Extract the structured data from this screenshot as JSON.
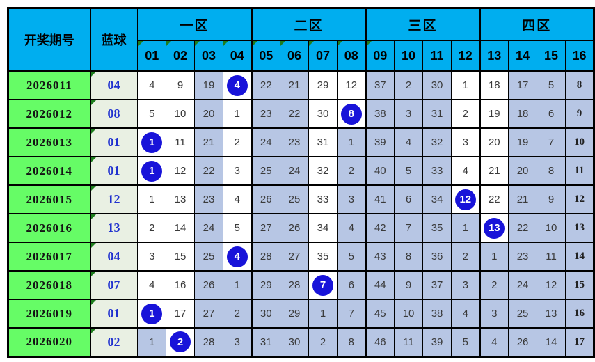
{
  "header": {
    "period_label": "开奖期号",
    "blue_label": "蓝球",
    "zones": [
      "一区",
      "二区",
      "三区",
      "四区"
    ],
    "columns": [
      "01",
      "02",
      "03",
      "04",
      "05",
      "06",
      "07",
      "08",
      "09",
      "10",
      "11",
      "12",
      "13",
      "14",
      "15",
      "16"
    ],
    "marked_columns": [
      "01",
      "02",
      "03",
      "04",
      "05",
      "06",
      "07",
      "08",
      "09"
    ]
  },
  "colors": {
    "header_bg": "#00AEEF",
    "period_bg": "#66FC66",
    "blue_ball_bg": "#E9F0E3",
    "highlight_bg": "#B7C6E4",
    "plain_bg": "#FFFFFF",
    "drawn_circle": "#1813D9",
    "blue_text": "#2031CF",
    "marker_green": "#1E7E1E",
    "border": "#000000"
  },
  "table": {
    "rows": [
      {
        "period": "2026011",
        "blue": "04",
        "cells": [
          {
            "v": "4",
            "hl": false,
            "drawn": false
          },
          {
            "v": "9",
            "hl": false,
            "drawn": false
          },
          {
            "v": "19",
            "hl": true,
            "drawn": false
          },
          {
            "v": "4",
            "hl": false,
            "drawn": true
          },
          {
            "v": "22",
            "hl": true,
            "drawn": false
          },
          {
            "v": "21",
            "hl": true,
            "drawn": false
          },
          {
            "v": "29",
            "hl": false,
            "drawn": false
          },
          {
            "v": "12",
            "hl": false,
            "drawn": false
          },
          {
            "v": "37",
            "hl": true,
            "drawn": false
          },
          {
            "v": "2",
            "hl": true,
            "drawn": false
          },
          {
            "v": "30",
            "hl": true,
            "drawn": false
          },
          {
            "v": "1",
            "hl": false,
            "drawn": false
          },
          {
            "v": "18",
            "hl": false,
            "drawn": false
          },
          {
            "v": "17",
            "hl": true,
            "drawn": false
          },
          {
            "v": "5",
            "hl": true,
            "drawn": false
          },
          {
            "v": "8",
            "hl": true,
            "drawn": false
          }
        ]
      },
      {
        "period": "2026012",
        "blue": "08",
        "cells": [
          {
            "v": "5",
            "hl": false,
            "drawn": false
          },
          {
            "v": "10",
            "hl": false,
            "drawn": false
          },
          {
            "v": "20",
            "hl": true,
            "drawn": false
          },
          {
            "v": "1",
            "hl": false,
            "drawn": false
          },
          {
            "v": "23",
            "hl": true,
            "drawn": false
          },
          {
            "v": "22",
            "hl": true,
            "drawn": false
          },
          {
            "v": "30",
            "hl": false,
            "drawn": false
          },
          {
            "v": "8",
            "hl": false,
            "drawn": true
          },
          {
            "v": "38",
            "hl": true,
            "drawn": false
          },
          {
            "v": "3",
            "hl": true,
            "drawn": false
          },
          {
            "v": "31",
            "hl": true,
            "drawn": false
          },
          {
            "v": "2",
            "hl": false,
            "drawn": false
          },
          {
            "v": "19",
            "hl": false,
            "drawn": false
          },
          {
            "v": "18",
            "hl": true,
            "drawn": false
          },
          {
            "v": "6",
            "hl": true,
            "drawn": false
          },
          {
            "v": "9",
            "hl": true,
            "drawn": false
          }
        ]
      },
      {
        "period": "2026013",
        "blue": "01",
        "cells": [
          {
            "v": "1",
            "hl": false,
            "drawn": true
          },
          {
            "v": "11",
            "hl": false,
            "drawn": false
          },
          {
            "v": "21",
            "hl": true,
            "drawn": false
          },
          {
            "v": "2",
            "hl": false,
            "drawn": false
          },
          {
            "v": "24",
            "hl": true,
            "drawn": false
          },
          {
            "v": "23",
            "hl": true,
            "drawn": false
          },
          {
            "v": "31",
            "hl": false,
            "drawn": false
          },
          {
            "v": "1",
            "hl": true,
            "drawn": false
          },
          {
            "v": "39",
            "hl": true,
            "drawn": false
          },
          {
            "v": "4",
            "hl": true,
            "drawn": false
          },
          {
            "v": "32",
            "hl": true,
            "drawn": false
          },
          {
            "v": "3",
            "hl": false,
            "drawn": false
          },
          {
            "v": "20",
            "hl": false,
            "drawn": false
          },
          {
            "v": "19",
            "hl": true,
            "drawn": false
          },
          {
            "v": "7",
            "hl": true,
            "drawn": false
          },
          {
            "v": "10",
            "hl": true,
            "drawn": false
          }
        ]
      },
      {
        "period": "2026014",
        "blue": "01",
        "cells": [
          {
            "v": "1",
            "hl": false,
            "drawn": true
          },
          {
            "v": "12",
            "hl": false,
            "drawn": false
          },
          {
            "v": "22",
            "hl": true,
            "drawn": false
          },
          {
            "v": "3",
            "hl": false,
            "drawn": false
          },
          {
            "v": "25",
            "hl": true,
            "drawn": false
          },
          {
            "v": "24",
            "hl": true,
            "drawn": false
          },
          {
            "v": "32",
            "hl": false,
            "drawn": false
          },
          {
            "v": "2",
            "hl": true,
            "drawn": false
          },
          {
            "v": "40",
            "hl": true,
            "drawn": false
          },
          {
            "v": "5",
            "hl": true,
            "drawn": false
          },
          {
            "v": "33",
            "hl": true,
            "drawn": false
          },
          {
            "v": "4",
            "hl": false,
            "drawn": false
          },
          {
            "v": "21",
            "hl": false,
            "drawn": false
          },
          {
            "v": "20",
            "hl": true,
            "drawn": false
          },
          {
            "v": "8",
            "hl": true,
            "drawn": false
          },
          {
            "v": "11",
            "hl": true,
            "drawn": false
          }
        ]
      },
      {
        "period": "2026015",
        "blue": "12",
        "cells": [
          {
            "v": "1",
            "hl": false,
            "drawn": false
          },
          {
            "v": "13",
            "hl": false,
            "drawn": false
          },
          {
            "v": "23",
            "hl": true,
            "drawn": false
          },
          {
            "v": "4",
            "hl": false,
            "drawn": false
          },
          {
            "v": "26",
            "hl": true,
            "drawn": false
          },
          {
            "v": "25",
            "hl": true,
            "drawn": false
          },
          {
            "v": "33",
            "hl": false,
            "drawn": false
          },
          {
            "v": "3",
            "hl": true,
            "drawn": false
          },
          {
            "v": "41",
            "hl": true,
            "drawn": false
          },
          {
            "v": "6",
            "hl": true,
            "drawn": false
          },
          {
            "v": "34",
            "hl": true,
            "drawn": false
          },
          {
            "v": "12",
            "hl": false,
            "drawn": true
          },
          {
            "v": "22",
            "hl": false,
            "drawn": false
          },
          {
            "v": "21",
            "hl": true,
            "drawn": false
          },
          {
            "v": "9",
            "hl": true,
            "drawn": false
          },
          {
            "v": "12",
            "hl": true,
            "drawn": false
          }
        ]
      },
      {
        "period": "2026016",
        "blue": "13",
        "cells": [
          {
            "v": "2",
            "hl": false,
            "drawn": false
          },
          {
            "v": "14",
            "hl": false,
            "drawn": false
          },
          {
            "v": "24",
            "hl": true,
            "drawn": false
          },
          {
            "v": "5",
            "hl": false,
            "drawn": false
          },
          {
            "v": "27",
            "hl": true,
            "drawn": false
          },
          {
            "v": "26",
            "hl": true,
            "drawn": false
          },
          {
            "v": "34",
            "hl": false,
            "drawn": false
          },
          {
            "v": "4",
            "hl": true,
            "drawn": false
          },
          {
            "v": "42",
            "hl": true,
            "drawn": false
          },
          {
            "v": "7",
            "hl": true,
            "drawn": false
          },
          {
            "v": "35",
            "hl": true,
            "drawn": false
          },
          {
            "v": "1",
            "hl": true,
            "drawn": false
          },
          {
            "v": "13",
            "hl": false,
            "drawn": true
          },
          {
            "v": "22",
            "hl": true,
            "drawn": false
          },
          {
            "v": "10",
            "hl": true,
            "drawn": false
          },
          {
            "v": "13",
            "hl": true,
            "drawn": false
          }
        ]
      },
      {
        "period": "2026017",
        "blue": "04",
        "cells": [
          {
            "v": "3",
            "hl": false,
            "drawn": false
          },
          {
            "v": "15",
            "hl": false,
            "drawn": false
          },
          {
            "v": "25",
            "hl": true,
            "drawn": false
          },
          {
            "v": "4",
            "hl": false,
            "drawn": true
          },
          {
            "v": "28",
            "hl": true,
            "drawn": false
          },
          {
            "v": "27",
            "hl": true,
            "drawn": false
          },
          {
            "v": "35",
            "hl": false,
            "drawn": false
          },
          {
            "v": "5",
            "hl": true,
            "drawn": false
          },
          {
            "v": "43",
            "hl": true,
            "drawn": false
          },
          {
            "v": "8",
            "hl": true,
            "drawn": false
          },
          {
            "v": "36",
            "hl": true,
            "drawn": false
          },
          {
            "v": "2",
            "hl": true,
            "drawn": false
          },
          {
            "v": "1",
            "hl": true,
            "drawn": false
          },
          {
            "v": "23",
            "hl": true,
            "drawn": false
          },
          {
            "v": "11",
            "hl": true,
            "drawn": false
          },
          {
            "v": "14",
            "hl": true,
            "drawn": false
          }
        ]
      },
      {
        "period": "2026018",
        "blue": "07",
        "cells": [
          {
            "v": "4",
            "hl": false,
            "drawn": false
          },
          {
            "v": "16",
            "hl": false,
            "drawn": false
          },
          {
            "v": "26",
            "hl": true,
            "drawn": false
          },
          {
            "v": "1",
            "hl": true,
            "drawn": false
          },
          {
            "v": "29",
            "hl": true,
            "drawn": false
          },
          {
            "v": "28",
            "hl": true,
            "drawn": false
          },
          {
            "v": "7",
            "hl": false,
            "drawn": true
          },
          {
            "v": "6",
            "hl": true,
            "drawn": false
          },
          {
            "v": "44",
            "hl": true,
            "drawn": false
          },
          {
            "v": "9",
            "hl": true,
            "drawn": false
          },
          {
            "v": "37",
            "hl": true,
            "drawn": false
          },
          {
            "v": "3",
            "hl": true,
            "drawn": false
          },
          {
            "v": "2",
            "hl": true,
            "drawn": false
          },
          {
            "v": "24",
            "hl": true,
            "drawn": false
          },
          {
            "v": "12",
            "hl": true,
            "drawn": false
          },
          {
            "v": "15",
            "hl": true,
            "drawn": false
          }
        ]
      },
      {
        "period": "2026019",
        "blue": "01",
        "cells": [
          {
            "v": "1",
            "hl": false,
            "drawn": true
          },
          {
            "v": "17",
            "hl": false,
            "drawn": false
          },
          {
            "v": "27",
            "hl": true,
            "drawn": false
          },
          {
            "v": "2",
            "hl": true,
            "drawn": false
          },
          {
            "v": "30",
            "hl": true,
            "drawn": false
          },
          {
            "v": "29",
            "hl": true,
            "drawn": false
          },
          {
            "v": "1",
            "hl": true,
            "drawn": false
          },
          {
            "v": "7",
            "hl": true,
            "drawn": false
          },
          {
            "v": "45",
            "hl": true,
            "drawn": false
          },
          {
            "v": "10",
            "hl": true,
            "drawn": false
          },
          {
            "v": "38",
            "hl": true,
            "drawn": false
          },
          {
            "v": "4",
            "hl": true,
            "drawn": false
          },
          {
            "v": "3",
            "hl": true,
            "drawn": false
          },
          {
            "v": "25",
            "hl": true,
            "drawn": false
          },
          {
            "v": "13",
            "hl": true,
            "drawn": false
          },
          {
            "v": "16",
            "hl": true,
            "drawn": false
          }
        ]
      },
      {
        "period": "2026020",
        "blue": "02",
        "cells": [
          {
            "v": "1",
            "hl": true,
            "drawn": false
          },
          {
            "v": "2",
            "hl": false,
            "drawn": true
          },
          {
            "v": "28",
            "hl": true,
            "drawn": false
          },
          {
            "v": "3",
            "hl": true,
            "drawn": false
          },
          {
            "v": "31",
            "hl": true,
            "drawn": false
          },
          {
            "v": "30",
            "hl": true,
            "drawn": false
          },
          {
            "v": "2",
            "hl": true,
            "drawn": false
          },
          {
            "v": "8",
            "hl": true,
            "drawn": false
          },
          {
            "v": "46",
            "hl": true,
            "drawn": false
          },
          {
            "v": "11",
            "hl": true,
            "drawn": false
          },
          {
            "v": "39",
            "hl": true,
            "drawn": false
          },
          {
            "v": "5",
            "hl": true,
            "drawn": false
          },
          {
            "v": "4",
            "hl": true,
            "drawn": false
          },
          {
            "v": "26",
            "hl": true,
            "drawn": false
          },
          {
            "v": "14",
            "hl": true,
            "drawn": false
          },
          {
            "v": "17",
            "hl": true,
            "drawn": false
          }
        ]
      }
    ]
  }
}
